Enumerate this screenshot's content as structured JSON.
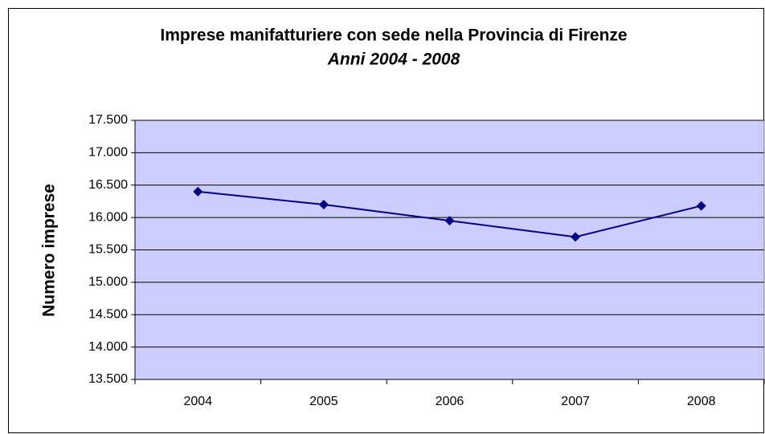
{
  "chart_data": {
    "type": "line",
    "title": "Imprese manifatturiere con sede nella Provincia di Firenze",
    "subtitle": "Anni 2004 - 2008",
    "y_label": "Numero imprese",
    "categories": [
      "2004",
      "2005",
      "2006",
      "2007",
      "2008"
    ],
    "series": [
      {
        "name": "Numero imprese",
        "color": "#000080",
        "values": [
          16400,
          16200,
          15950,
          15700,
          16180
        ]
      }
    ],
    "ylim": [
      13500,
      17500
    ],
    "yticks": [
      {
        "value": 13500,
        "label": "13.500"
      },
      {
        "value": 14000,
        "label": "14.000"
      },
      {
        "value": 14500,
        "label": "14.500"
      },
      {
        "value": 15000,
        "label": "15.000"
      },
      {
        "value": 15500,
        "label": "15.500"
      },
      {
        "value": 16000,
        "label": "16.000"
      },
      {
        "value": 16500,
        "label": "16.500"
      },
      {
        "value": 17000,
        "label": "17.000"
      },
      {
        "value": 17500,
        "label": "17.500"
      }
    ],
    "grid": true,
    "plot_background": "#ccccff"
  }
}
